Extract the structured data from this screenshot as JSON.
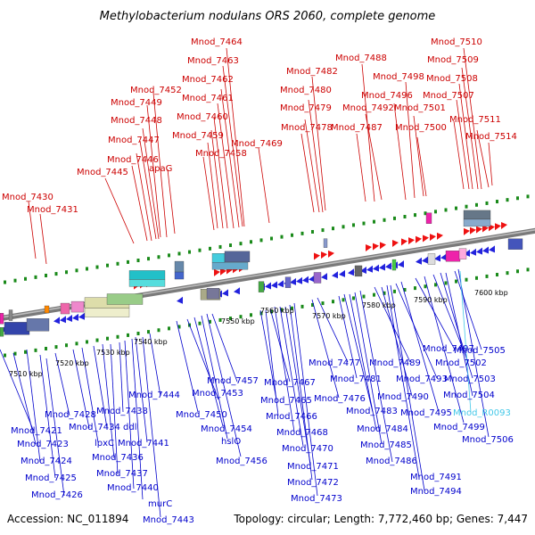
{
  "title": "Methylobacterium nodulans ORS 2060, complete genome",
  "footer": {
    "accession": "Accession: NC_011894",
    "summary": "Topology: circular; Length: 7,772,460 bp; Genes: 7,447"
  },
  "colors": {
    "top_strand_label": "#cc0000",
    "bottom_strand_label": "#0000cc",
    "rna_label": "#44c8e8",
    "backbone": "#7a7a7a",
    "ruler_dot": "#1a8a1a"
  },
  "ruler_ticks": [
    "7510 kbp",
    "7520 kbp",
    "7530 kbp",
    "7540 kbp",
    "7550 kbp",
    "7560 kbp",
    "7570 kbp",
    "7580 kbp",
    "7590 kbp",
    "7600 kbp"
  ],
  "top_labels": [
    "Mnod_7430",
    "Mnod_7431",
    "Mnod_7445",
    "Mnod_7446",
    "Mnod_7447",
    "Mnod_7448",
    "Mnod_7449",
    "Mnod_7452",
    "apaG",
    "Mnod_7458",
    "Mnod_7459",
    "Mnod_7460",
    "Mnod_7461",
    "Mnod_7462",
    "Mnod_7463",
    "Mnod_7464",
    "Mnod_7469",
    "Mnod_7478",
    "Mnod_7479",
    "Mnod_7480",
    "Mnod_7482",
    "Mnod_7487",
    "Mnod_7488",
    "Mnod_7492",
    "Mnod_7496",
    "Mnod_7498",
    "Mnod_7500",
    "Mnod_7501",
    "Mnod_7507",
    "Mnod_7508",
    "Mnod_7509",
    "Mnod_7510",
    "Mnod_7511",
    "Mnod_7514"
  ],
  "bottom_labels": [
    "Mnod_7421",
    "Mnod_7423",
    "Mnod_7424",
    "Mnod_7425",
    "Mnod_7426",
    "Mnod_7428",
    "Mnod_7434",
    "lpxC",
    "ddl",
    "Mnod_7436",
    "Mnod_7437",
    "Mnod_7438",
    "Mnod_7440",
    "murC",
    "Mnod_7441",
    "Mnod_7443",
    "Mnod_7444",
    "Mnod_7450",
    "Mnod_7453",
    "Mnod_7454",
    "hslO",
    "Mnod_7456",
    "Mnod_7457",
    "Mnod_7465",
    "Mnod_7466",
    "Mnod_7467",
    "Mnod_7468",
    "Mnod_7470",
    "Mnod_7471",
    "Mnod_7472",
    "Mnod_7473",
    "Mnod_7476",
    "Mnod_7477",
    "Mnod_7481",
    "Mnod_7483",
    "Mnod_7484",
    "Mnod_7485",
    "Mnod_7486",
    "Mnod_7489",
    "Mnod_7490",
    "Mnod_7491",
    "Mnod_7493",
    "Mnod_7494",
    "Mnod_7495",
    "Mnod_7497",
    "Mnod_7499",
    "Mnod_7502",
    "Mnod_7503",
    "Mnod_7504",
    "Mnod_7505",
    "Mnod_7506"
  ],
  "rna_labels": [
    "Mnod_R0093"
  ]
}
